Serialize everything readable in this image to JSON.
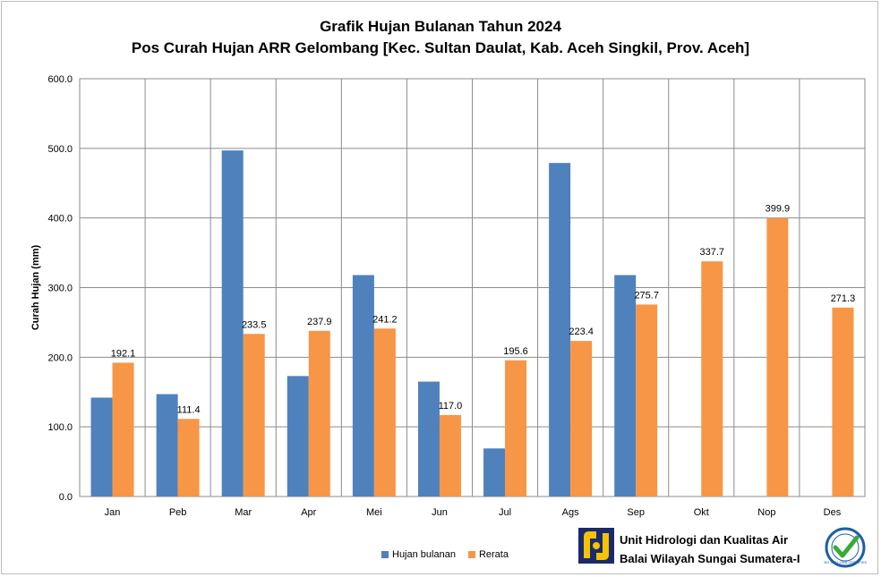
{
  "chart_data": {
    "type": "bar",
    "title": "Grafik Hujan Bulanan Tahun 2024",
    "subtitle": "Pos Curah Hujan ARR  Gelombang [Kec. Sultan Daulat, Kab. Aceh Singkil, Prov. Aceh]",
    "xlabel": "",
    "ylabel": "Curah Hujan (mm)",
    "ylim": [
      0,
      600
    ],
    "yticks": [
      "0.0",
      "100.0",
      "200.0",
      "300.0",
      "400.0",
      "500.0",
      "600.0"
    ],
    "grid": true,
    "legend_position": "bottom",
    "categories": [
      "Jan",
      "Peb",
      "Mar",
      "Apr",
      "Mei",
      "Jun",
      "Jul",
      "Ags",
      "Sep",
      "Okt",
      "Nop",
      "Des"
    ],
    "series": [
      {
        "name": "Hujan bulanan",
        "color": "#4f81bd",
        "values": [
          142,
          147,
          497,
          173,
          318,
          165,
          69,
          479,
          318,
          null,
          null,
          null
        ],
        "labels": [
          "",
          "",
          "",
          "",
          "",
          "",
          "",
          "",
          "",
          "",
          "",
          ""
        ]
      },
      {
        "name": "Rerata",
        "color": "#f79646",
        "values": [
          192.1,
          111.4,
          233.5,
          237.9,
          241.2,
          117.0,
          195.6,
          223.4,
          275.7,
          337.7,
          399.9,
          271.3
        ],
        "labels": [
          "192.1",
          "111.4",
          "233.5",
          "237.9",
          "241.2",
          "117.0",
          "195.6",
          "223.4",
          "275.7",
          "337.7",
          "399.9",
          "271.3"
        ]
      }
    ]
  },
  "footer": {
    "org_line1": "Unit Hidrologi dan Kualitas Air",
    "org_line2": "Balai Wilayah Sungai Sumatera-I",
    "pu_logo_icon": "pu-logo-icon",
    "cert_icon": "iso-certified-icon",
    "cert_text": "ISO 9001:2008 CERTIFIED"
  }
}
